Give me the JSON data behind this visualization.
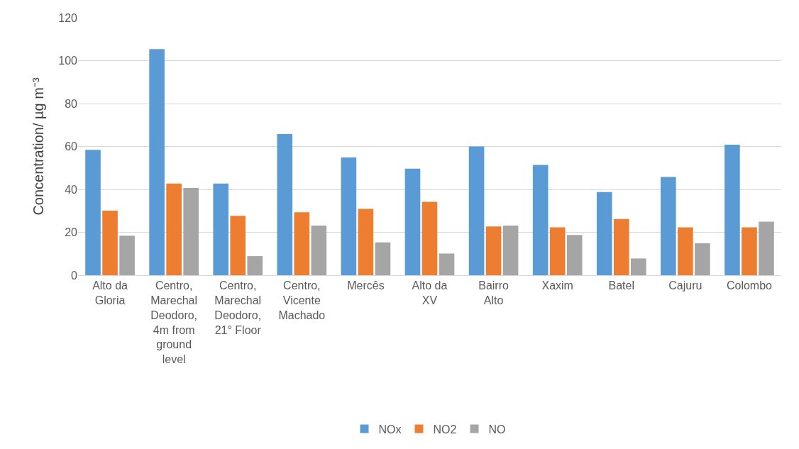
{
  "chart_data": {
    "type": "bar",
    "ylabel": "Concentration/ µg m⁻³",
    "categories": [
      "Alto da Gloria",
      "Centro, Marechal Deodoro, 4m from ground level",
      "Centro, Marechal Deodoro, 21° Floor",
      "Centro, Vicente Machado",
      "Mercês",
      "Alto da XV",
      "Bairro Alto",
      "Xaxim",
      "Batel",
      "Cajuru",
      "Colombo"
    ],
    "series": [
      {
        "name": "NOx",
        "color": "#5b9bd5",
        "values": [
          58.4,
          105.4,
          42.7,
          65.8,
          54.9,
          49.7,
          60,
          51.4,
          38.8,
          45.8,
          60.8
        ]
      },
      {
        "name": "NO2",
        "color": "#ed7d31",
        "values": [
          30.1,
          42.7,
          27.7,
          29.3,
          30.9,
          34.2,
          22.7,
          22.3,
          26.2,
          22.3,
          22.3
        ]
      },
      {
        "name": "NO",
        "color": "#a5a5a5",
        "values": [
          18.4,
          40.7,
          8.9,
          23.1,
          15.3,
          10.1,
          23.1,
          18.8,
          7.8,
          14.9,
          25
        ]
      }
    ],
    "ylim": [
      0,
      120
    ],
    "yticks": [
      0,
      20,
      40,
      60,
      80,
      100,
      120
    ],
    "grid": "y",
    "legend": "bottom"
  }
}
